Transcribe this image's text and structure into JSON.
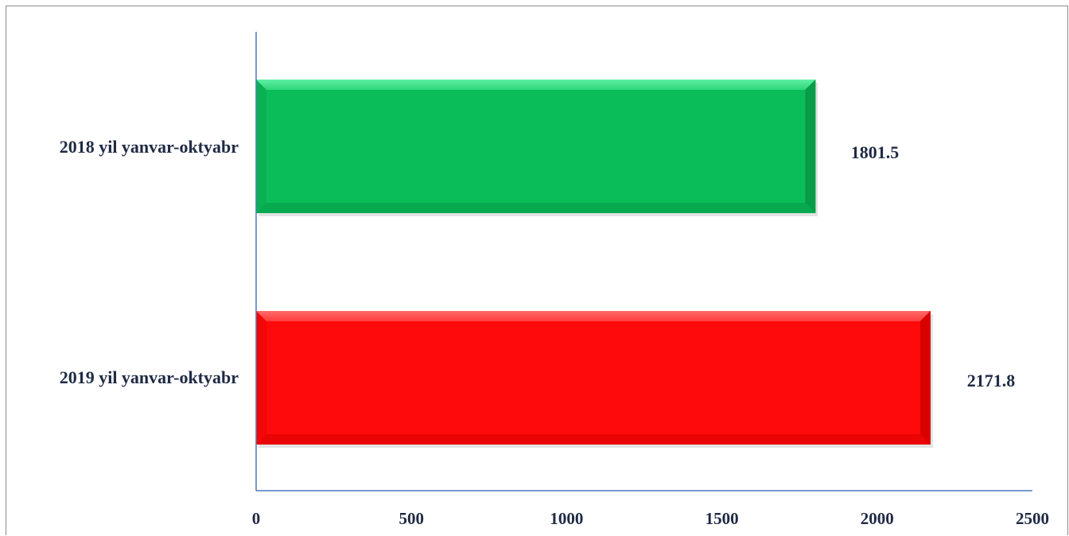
{
  "chart_data": {
    "type": "bar",
    "orientation": "horizontal",
    "title": "",
    "xlabel": "",
    "ylabel": "",
    "categories": [
      "2018 yil yanvar-oktyabr",
      "2019 yil yanvar-oktyabr"
    ],
    "values": [
      1801.5,
      2171.8
    ],
    "value_labels": [
      "1801.5",
      "2171.8"
    ],
    "colors": [
      "#0bbd59",
      "#ff0a0a"
    ],
    "xlim": [
      0,
      2500
    ],
    "xticks": [
      0,
      500,
      1000,
      1500,
      2000,
      2500
    ],
    "xtick_labels": [
      "0",
      "500",
      "1000",
      "1500",
      "2000",
      "2500"
    ],
    "grid": false,
    "legend": "none",
    "axis_color": "#4a7ab8"
  }
}
